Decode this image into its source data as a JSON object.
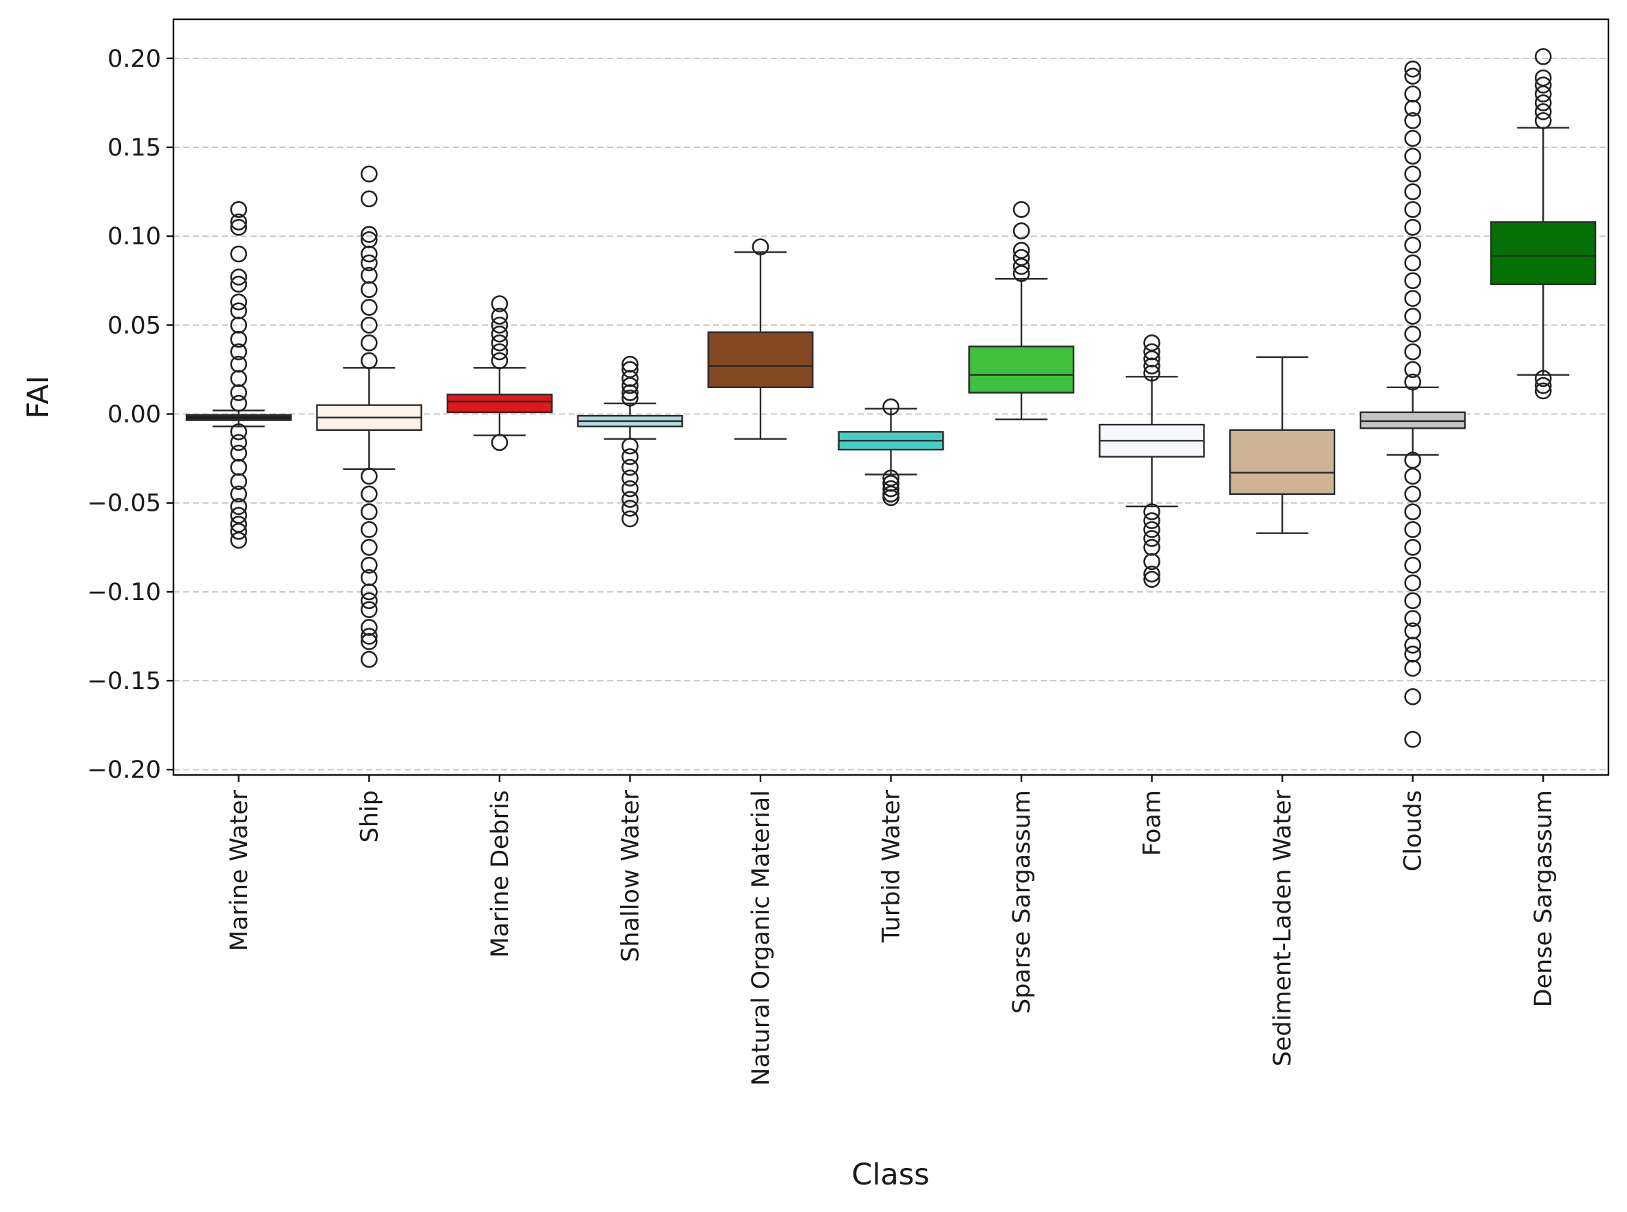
{
  "chart_data": {
    "type": "box",
    "xlabel": "Class",
    "ylabel": "FAI",
    "ylim": [
      -0.203,
      0.222
    ],
    "yticks": [
      -0.2,
      -0.15,
      -0.1,
      -0.05,
      0.0,
      0.05,
      0.1,
      0.15,
      0.2
    ],
    "ytick_labels": [
      "−0.20",
      "−0.15",
      "−0.10",
      "−0.05",
      "0.00",
      "0.05",
      "0.10",
      "0.15",
      "0.20"
    ],
    "grid": "horizontal dashed",
    "categories": [
      {
        "name": "Marine Water",
        "color": "#2b2b2b",
        "whisker_low": -0.007,
        "q1": -0.0035,
        "median": -0.002,
        "q3": -0.0005,
        "whisker_high": 0.002,
        "outliers_high": [
          0.115,
          0.108,
          0.105,
          0.09,
          0.077,
          0.073,
          0.063,
          0.058,
          0.05,
          0.042,
          0.035,
          0.028,
          0.02,
          0.012,
          0.006
        ],
        "outliers_low": [
          -0.01,
          -0.016,
          -0.022,
          -0.03,
          -0.038,
          -0.045,
          -0.052,
          -0.057,
          -0.062,
          -0.066,
          -0.071
        ]
      },
      {
        "name": "Ship",
        "color": "#fcf2ec",
        "whisker_low": -0.031,
        "q1": -0.009,
        "median": -0.002,
        "q3": 0.005,
        "whisker_high": 0.026,
        "outliers_high": [
          0.135,
          0.121,
          0.101,
          0.098,
          0.09,
          0.085,
          0.078,
          0.07,
          0.06,
          0.05,
          0.04,
          0.03
        ],
        "outliers_low": [
          -0.035,
          -0.045,
          -0.055,
          -0.065,
          -0.075,
          -0.085,
          -0.092,
          -0.1,
          -0.105,
          -0.11,
          -0.12,
          -0.125,
          -0.128,
          -0.138
        ]
      },
      {
        "name": "Marine Debris",
        "color": "#e0181b",
        "whisker_low": -0.012,
        "q1": 0.001,
        "median": 0.007,
        "q3": 0.011,
        "whisker_high": 0.026,
        "outliers_high": [
          0.062,
          0.055,
          0.05,
          0.045,
          0.04,
          0.035,
          0.03
        ],
        "outliers_low": [
          -0.016
        ]
      },
      {
        "name": "Shallow Water",
        "color": "#b5dde0",
        "whisker_low": -0.014,
        "q1": -0.007,
        "median": -0.004,
        "q3": -0.001,
        "whisker_high": 0.006,
        "outliers_high": [
          0.028,
          0.025,
          0.02,
          0.016,
          0.012,
          0.009
        ],
        "outliers_low": [
          -0.018,
          -0.024,
          -0.03,
          -0.036,
          -0.042,
          -0.048,
          -0.053,
          -0.059
        ]
      },
      {
        "name": "Natural Organic Material",
        "color": "#854622",
        "whisker_low": -0.014,
        "q1": 0.015,
        "median": 0.027,
        "q3": 0.046,
        "whisker_high": 0.091,
        "outliers_high": [
          0.094
        ],
        "outliers_low": []
      },
      {
        "name": "Turbid Water",
        "color": "#45cfc4",
        "whisker_low": -0.034,
        "q1": -0.02,
        "median": -0.015,
        "q3": -0.01,
        "whisker_high": 0.003,
        "outliers_high": [
          0.004
        ],
        "outliers_low": [
          -0.036,
          -0.039,
          -0.042,
          -0.045,
          -0.047
        ]
      },
      {
        "name": "Sparse Sargassum",
        "color": "#3fc13f",
        "whisker_low": -0.003,
        "q1": 0.012,
        "median": 0.022,
        "q3": 0.038,
        "whisker_high": 0.076,
        "outliers_high": [
          0.115,
          0.103,
          0.092,
          0.088,
          0.083,
          0.079
        ],
        "outliers_low": []
      },
      {
        "name": "Foam",
        "color": "#f6f8fd",
        "whisker_low": -0.052,
        "q1": -0.024,
        "median": -0.015,
        "q3": -0.006,
        "whisker_high": 0.021,
        "outliers_high": [
          0.04,
          0.035,
          0.031,
          0.027,
          0.023
        ],
        "outliers_low": [
          -0.055,
          -0.06,
          -0.065,
          -0.07,
          -0.075,
          -0.083,
          -0.09,
          -0.093
        ]
      },
      {
        "name": "Sediment-Laden Water",
        "color": "#ceb394",
        "whisker_low": -0.067,
        "q1": -0.045,
        "median": -0.033,
        "q3": -0.009,
        "whisker_high": 0.032,
        "outliers_high": [],
        "outliers_low": []
      },
      {
        "name": "Clouds",
        "color": "#c4c4c4",
        "whisker_low": -0.023,
        "q1": -0.008,
        "median": -0.004,
        "q3": 0.001,
        "whisker_high": 0.015,
        "outliers_high": [
          0.194,
          0.19,
          0.18,
          0.172,
          0.165,
          0.155,
          0.145,
          0.135,
          0.125,
          0.115,
          0.105,
          0.095,
          0.085,
          0.075,
          0.065,
          0.055,
          0.045,
          0.035,
          0.025,
          0.018
        ],
        "outliers_low": [
          -0.026,
          -0.035,
          -0.045,
          -0.055,
          -0.065,
          -0.075,
          -0.085,
          -0.095,
          -0.105,
          -0.115,
          -0.122,
          -0.13,
          -0.135,
          -0.143,
          -0.159,
          -0.183
        ]
      },
      {
        "name": "Dense Sargassum",
        "color": "#057105",
        "whisker_low": 0.022,
        "q1": 0.073,
        "median": 0.089,
        "q3": 0.108,
        "whisker_high": 0.161,
        "outliers_high": [
          0.201,
          0.189,
          0.185,
          0.18,
          0.175,
          0.17,
          0.165
        ],
        "outliers_low": [
          0.02,
          0.016,
          0.013
        ]
      }
    ]
  }
}
